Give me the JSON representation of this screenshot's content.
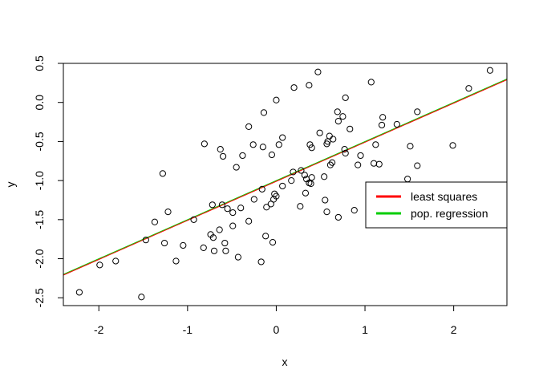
{
  "chart_data": {
    "type": "scatter",
    "title": "",
    "xlabel": "x",
    "ylabel": "y",
    "xlim": [
      -2.4,
      2.6
    ],
    "ylim": [
      -2.6,
      0.5
    ],
    "xticks": [
      -2,
      -1,
      0,
      1,
      2
    ],
    "yticks": [
      -2.5,
      -2.0,
      -1.5,
      -1.0,
      -0.5,
      0.0,
      0.5
    ],
    "ytick_labels": [
      "-2.5",
      "-2.0",
      "-1.5",
      "-1.0",
      "-0.5",
      "0.0",
      "0.5"
    ],
    "grid": false,
    "legend_placement": "right",
    "legend": [
      {
        "label": "least squares",
        "color": "#ff0000"
      },
      {
        "label": "pop. regression",
        "color": "#00cd00"
      }
    ],
    "lines": [
      {
        "name": "least squares",
        "color": "#ff0000",
        "intercept": -1.01,
        "slope": 0.5
      },
      {
        "name": "pop. regression",
        "color": "#00cd00",
        "intercept": -1.0,
        "slope": 0.5
      }
    ],
    "points": [
      {
        "x": -2.22,
        "y": -2.43
      },
      {
        "x": -1.99,
        "y": -2.08
      },
      {
        "x": -1.81,
        "y": -2.03
      },
      {
        "x": -1.52,
        "y": -2.49
      },
      {
        "x": -1.47,
        "y": -1.76
      },
      {
        "x": -1.37,
        "y": -1.53
      },
      {
        "x": -1.28,
        "y": -0.91
      },
      {
        "x": -1.26,
        "y": -1.8
      },
      {
        "x": -1.22,
        "y": -1.4
      },
      {
        "x": -1.13,
        "y": -2.03
      },
      {
        "x": -1.05,
        "y": -1.83
      },
      {
        "x": -0.93,
        "y": -1.5
      },
      {
        "x": -0.82,
        "y": -1.86
      },
      {
        "x": -0.81,
        "y": -0.53
      },
      {
        "x": -0.74,
        "y": -1.69
      },
      {
        "x": -0.72,
        "y": -1.31
      },
      {
        "x": -0.71,
        "y": -1.73
      },
      {
        "x": -0.7,
        "y": -1.9
      },
      {
        "x": -0.64,
        "y": -1.63
      },
      {
        "x": -0.63,
        "y": -0.6
      },
      {
        "x": -0.61,
        "y": -1.31
      },
      {
        "x": -0.6,
        "y": -0.69
      },
      {
        "x": -0.58,
        "y": -1.8
      },
      {
        "x": -0.57,
        "y": -1.9
      },
      {
        "x": -0.55,
        "y": -1.36
      },
      {
        "x": -0.49,
        "y": -1.41
      },
      {
        "x": -0.49,
        "y": -1.58
      },
      {
        "x": -0.45,
        "y": -0.83
      },
      {
        "x": -0.43,
        "y": -1.98
      },
      {
        "x": -0.4,
        "y": -1.35
      },
      {
        "x": -0.38,
        "y": -0.68
      },
      {
        "x": -0.31,
        "y": -0.31
      },
      {
        "x": -0.31,
        "y": -1.52
      },
      {
        "x": -0.26,
        "y": -0.54
      },
      {
        "x": -0.25,
        "y": -1.24
      },
      {
        "x": -0.17,
        "y": -2.04
      },
      {
        "x": -0.16,
        "y": -1.11
      },
      {
        "x": -0.15,
        "y": -0.57
      },
      {
        "x": -0.14,
        "y": -0.13
      },
      {
        "x": -0.12,
        "y": -1.71
      },
      {
        "x": -0.11,
        "y": -1.34
      },
      {
        "x": -0.06,
        "y": -1.3
      },
      {
        "x": -0.05,
        "y": -0.67
      },
      {
        "x": -0.04,
        "y": -1.79
      },
      {
        "x": -0.03,
        "y": -1.24
      },
      {
        "x": -0.02,
        "y": -1.17
      },
      {
        "x": 0.0,
        "y": -1.2
      },
      {
        "x": 0.0,
        "y": 0.03
      },
      {
        "x": 0.03,
        "y": -0.54
      },
      {
        "x": 0.07,
        "y": -0.45
      },
      {
        "x": 0.07,
        "y": -1.07
      },
      {
        "x": 0.17,
        "y": -1.0
      },
      {
        "x": 0.19,
        "y": -0.89
      },
      {
        "x": 0.2,
        "y": 0.19
      },
      {
        "x": 0.27,
        "y": -1.33
      },
      {
        "x": 0.28,
        "y": -0.87
      },
      {
        "x": 0.32,
        "y": -0.93
      },
      {
        "x": 0.33,
        "y": -1.16
      },
      {
        "x": 0.34,
        "y": -0.98
      },
      {
        "x": 0.37,
        "y": 0.22
      },
      {
        "x": 0.37,
        "y": -1.03
      },
      {
        "x": 0.38,
        "y": -0.54
      },
      {
        "x": 0.39,
        "y": -1.04
      },
      {
        "x": 0.4,
        "y": -0.58
      },
      {
        "x": 0.4,
        "y": -0.96
      },
      {
        "x": 0.47,
        "y": 0.39
      },
      {
        "x": 0.49,
        "y": -0.39
      },
      {
        "x": 0.54,
        "y": -0.95
      },
      {
        "x": 0.55,
        "y": -1.25
      },
      {
        "x": 0.57,
        "y": -1.4
      },
      {
        "x": 0.57,
        "y": -0.53
      },
      {
        "x": 0.58,
        "y": -0.5
      },
      {
        "x": 0.6,
        "y": -0.43
      },
      {
        "x": 0.61,
        "y": -0.8
      },
      {
        "x": 0.63,
        "y": -0.77
      },
      {
        "x": 0.64,
        "y": -0.47
      },
      {
        "x": 0.69,
        "y": -0.12
      },
      {
        "x": 0.7,
        "y": -0.24
      },
      {
        "x": 0.7,
        "y": -1.47
      },
      {
        "x": 0.75,
        "y": -0.18
      },
      {
        "x": 0.77,
        "y": -0.6
      },
      {
        "x": 0.78,
        "y": -0.65
      },
      {
        "x": 0.78,
        "y": 0.06
      },
      {
        "x": 0.83,
        "y": -0.34
      },
      {
        "x": 0.88,
        "y": -1.38
      },
      {
        "x": 0.92,
        "y": -0.8
      },
      {
        "x": 0.95,
        "y": -0.68
      },
      {
        "x": 1.07,
        "y": 0.26
      },
      {
        "x": 1.1,
        "y": -0.78
      },
      {
        "x": 1.12,
        "y": -0.54
      },
      {
        "x": 1.16,
        "y": -0.79
      },
      {
        "x": 1.19,
        "y": -0.29
      },
      {
        "x": 1.2,
        "y": -0.19
      },
      {
        "x": 1.36,
        "y": -0.28
      },
      {
        "x": 1.48,
        "y": -0.98
      },
      {
        "x": 1.51,
        "y": -0.56
      },
      {
        "x": 1.59,
        "y": -0.12
      },
      {
        "x": 1.59,
        "y": -0.81
      },
      {
        "x": 1.99,
        "y": -0.55
      },
      {
        "x": 2.17,
        "y": 0.18
      },
      {
        "x": 2.41,
        "y": 0.41
      }
    ]
  }
}
